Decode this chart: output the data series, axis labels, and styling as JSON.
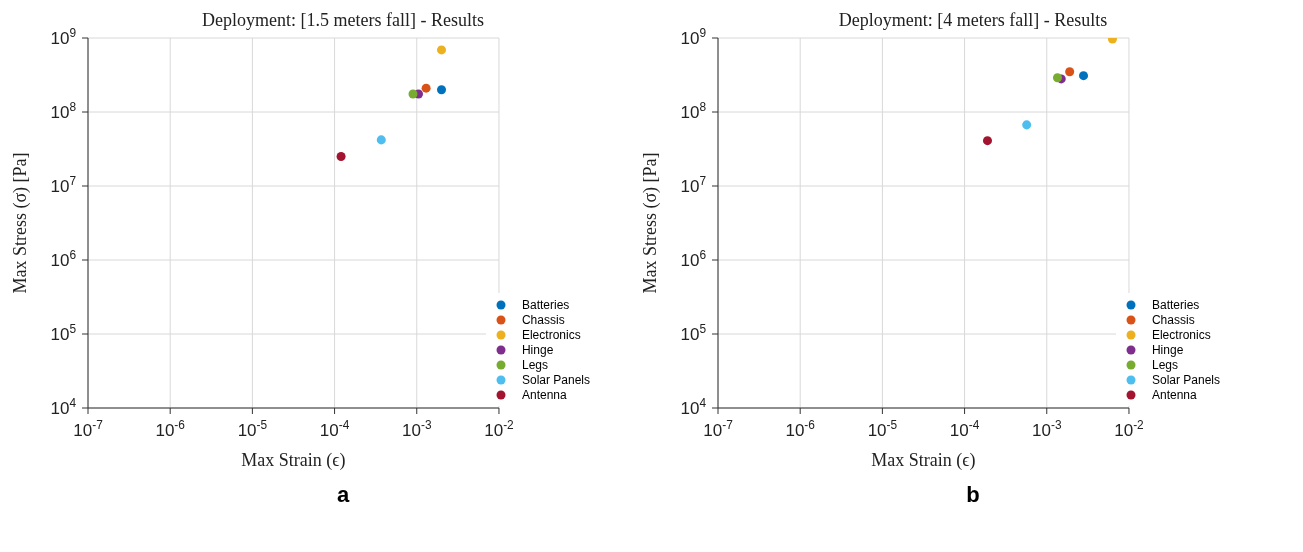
{
  "chart_data": [
    {
      "type": "scatter",
      "title": "Deployment: [1.5 meters fall] - Results",
      "xlabel": "Max Strain (ϵ)",
      "ylabel": "Max Stress (σ) [Pa]",
      "log": "xy",
      "grid": true,
      "legend": "bottom right",
      "marker": "circle",
      "xlim": [
        1e-07,
        0.01
      ],
      "ylim": [
        10000.0,
        1000000000.0
      ],
      "xticks": [
        {
          "value": 1e-07,
          "label": "10$^{-7}$"
        },
        {
          "value": 1e-06,
          "label": "10$^{-6}$"
        },
        {
          "value": 1e-05,
          "label": "10$^{-5}$"
        },
        {
          "value": 0.0001,
          "label": "10$^{-4}$"
        },
        {
          "value": 0.001,
          "label": "10$^{-3}$"
        },
        {
          "value": 0.01,
          "label": "10$^{-2}$"
        }
      ],
      "yticks": [
        {
          "value": 10000.0,
          "label": "10$^{4}$"
        },
        {
          "value": 100000.0,
          "label": "10$^{5}$"
        },
        {
          "value": 1000000.0,
          "label": "10$^{6}$"
        },
        {
          "value": 10000000.0,
          "label": "10$^{7}$"
        },
        {
          "value": 100000000.0,
          "label": "10$^{8}$"
        },
        {
          "value": 1000000000.0,
          "label": "10$^{9}$"
        }
      ],
      "annotations": [
        "a"
      ],
      "series": [
        {
          "name": "Batteries",
          "color": "#0072bd",
          "x": [
            0.002
          ],
          "values": [
            200000000.0
          ]
        },
        {
          "name": "Chassis",
          "color": "#d95319",
          "x": [
            0.0013
          ],
          "values": [
            210000000.0
          ]
        },
        {
          "name": "Electronics",
          "color": "#edb120",
          "x": [
            0.002
          ],
          "values": [
            690000000.0
          ]
        },
        {
          "name": "Hinge",
          "color": "#7e2f8e",
          "x": [
            0.00105
          ],
          "values": [
            175000000.0
          ]
        },
        {
          "name": "Legs",
          "color": "#77ac30",
          "x": [
            0.0009
          ],
          "values": [
            175000000.0
          ]
        },
        {
          "name": "Solar Panels",
          "color": "#4dbeee",
          "x": [
            0.00037
          ],
          "values": [
            42000000.0
          ]
        },
        {
          "name": "Antenna",
          "color": "#a2142f",
          "x": [
            0.00012
          ],
          "values": [
            25000000.0
          ]
        }
      ]
    },
    {
      "type": "scatter",
      "title": "Deployment: [4 meters fall] - Results",
      "xlabel": "Max Strain (ϵ)",
      "ylabel": "Max Stress (σ) [Pa]",
      "log": "xy",
      "grid": true,
      "legend": "bottom right",
      "marker": "circle",
      "xlim": [
        1e-07,
        0.01
      ],
      "ylim": [
        10000.0,
        1000000000.0
      ],
      "xticks": [
        {
          "value": 1e-07,
          "label": "10$^{-7}$"
        },
        {
          "value": 1e-06,
          "label": "10$^{-6}$"
        },
        {
          "value": 1e-05,
          "label": "10$^{-5}$"
        },
        {
          "value": 0.0001,
          "label": "10$^{-4}$"
        },
        {
          "value": 0.001,
          "label": "10$^{-3}$"
        },
        {
          "value": 0.01,
          "label": "10$^{-2}$"
        }
      ],
      "yticks": [
        {
          "value": 10000.0,
          "label": "10$^{4}$"
        },
        {
          "value": 100000.0,
          "label": "10$^{5}$"
        },
        {
          "value": 1000000.0,
          "label": "10$^{6}$"
        },
        {
          "value": 10000000.0,
          "label": "10$^{7}$"
        },
        {
          "value": 100000000.0,
          "label": "10$^{8}$"
        },
        {
          "value": 1000000000.0,
          "label": "10$^{9}$"
        }
      ],
      "annotations": [
        "b"
      ],
      "series": [
        {
          "name": "Batteries",
          "color": "#0072bd",
          "x": [
            0.0028
          ],
          "values": [
            310000000.0
          ]
        },
        {
          "name": "Chassis",
          "color": "#d95319",
          "x": [
            0.0019
          ],
          "values": [
            350000000.0
          ]
        },
        {
          "name": "Electronics",
          "color": "#edb120",
          "x": [
            0.0063
          ],
          "values": [
            970000000.0
          ]
        },
        {
          "name": "Hinge",
          "color": "#7e2f8e",
          "x": [
            0.0015
          ],
          "values": [
            280000000.0
          ]
        },
        {
          "name": "Legs",
          "color": "#77ac30",
          "x": [
            0.00135
          ],
          "values": [
            290000000.0
          ]
        },
        {
          "name": "Solar Panels",
          "color": "#4dbeee",
          "x": [
            0.00057
          ],
          "values": [
            67000000.0
          ]
        },
        {
          "name": "Antenna",
          "color": "#a2142f",
          "x": [
            0.00019
          ],
          "values": [
            41000000.0
          ]
        }
      ]
    }
  ]
}
